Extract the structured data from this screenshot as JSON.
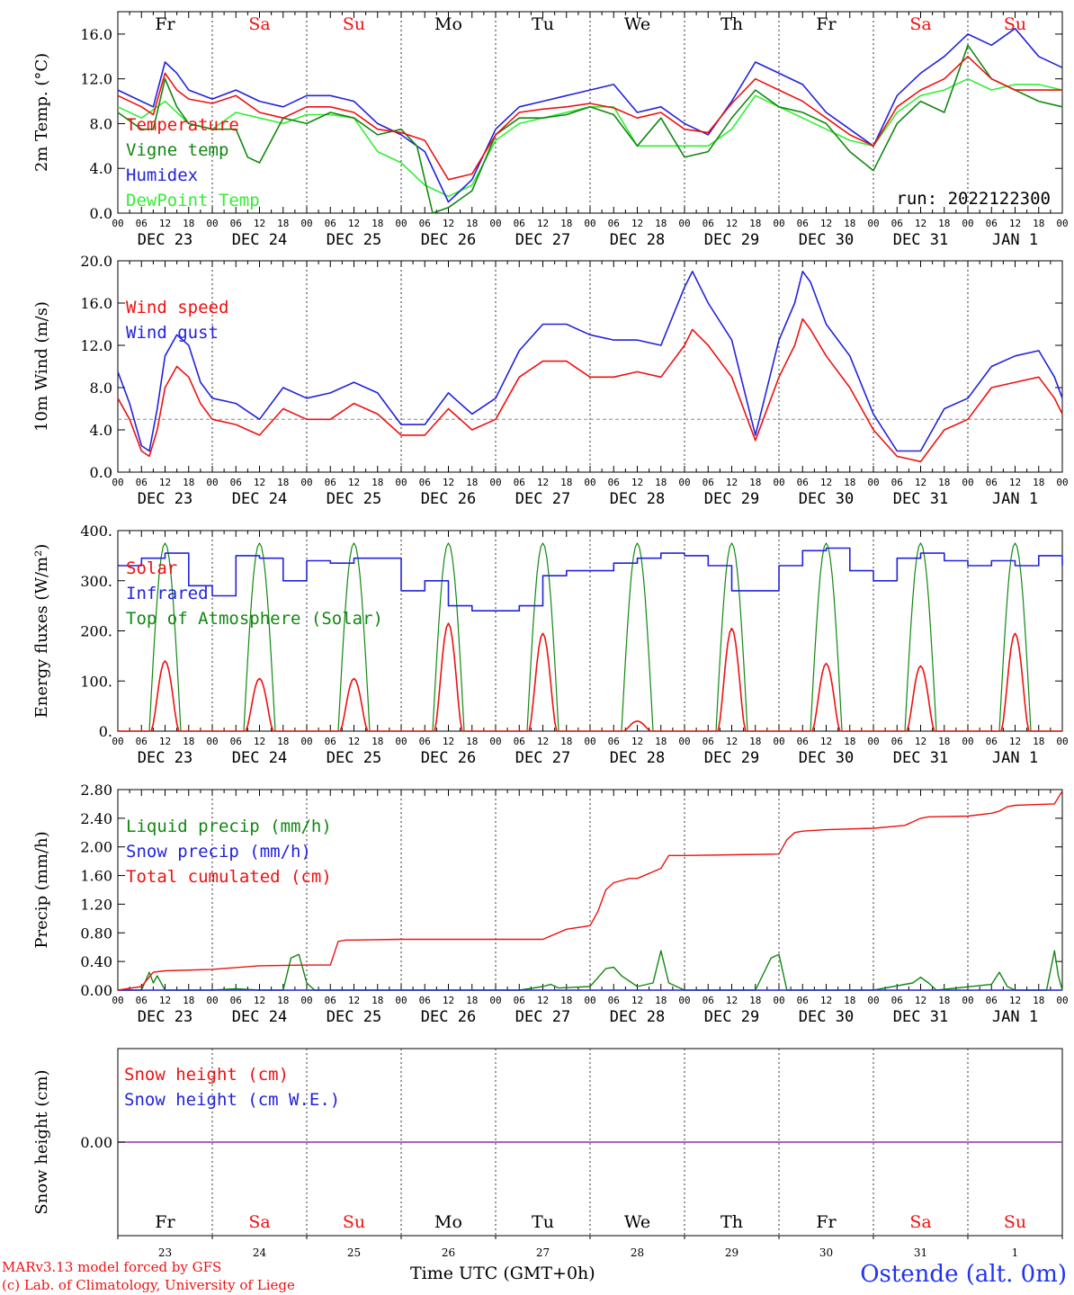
{
  "footer": {
    "credit_line1": "MARv3.13 model forced by GFS",
    "credit_line2": "(c) Lab. of Climatology, University of Liege",
    "station": "Ostende (alt. 0m)",
    "time_axis_label": "Time UTC (GMT+0h)"
  },
  "run_label": "run: 2022122300",
  "colors": {
    "red": "#ee1111",
    "green": "#118811",
    "blue": "#2222dd",
    "light_green": "#33ee33",
    "weekend": "#ee1111",
    "weekday": "#000000",
    "purple": "#8833aa"
  },
  "days": [
    {
      "abbr": "Fr",
      "date": "DEC 23",
      "num": "23",
      "weekend": false
    },
    {
      "abbr": "Sa",
      "date": "DEC 24",
      "num": "24",
      "weekend": true
    },
    {
      "abbr": "Su",
      "date": "DEC 25",
      "num": "25",
      "weekend": true
    },
    {
      "abbr": "Mo",
      "date": "DEC 26",
      "num": "26",
      "weekend": false
    },
    {
      "abbr": "Tu",
      "date": "DEC 27",
      "num": "27",
      "weekend": false
    },
    {
      "abbr": "We",
      "date": "DEC 28",
      "num": "28",
      "weekend": false
    },
    {
      "abbr": "Th",
      "date": "DEC 29",
      "num": "29",
      "weekend": false
    },
    {
      "abbr": "Fr",
      "date": "DEC 30",
      "num": "30",
      "weekend": false
    },
    {
      "abbr": "Sa",
      "date": "DEC 31",
      "num": "31",
      "weekend": true
    },
    {
      "abbr": "Su",
      "date": "JAN  1",
      "num": "1",
      "weekend": true
    }
  ],
  "hour_ticks": [
    "00",
    "06",
    "12",
    "18"
  ],
  "chart_data": [
    {
      "type": "line",
      "ylabel": "2m Temp. (°C)",
      "ylim": [
        0,
        18
      ],
      "yticks": [
        "0.0",
        "4.0",
        "8.0",
        "12.0",
        "16.0"
      ],
      "x_unit": "hours since 00 UTC DEC 23",
      "series": [
        {
          "name": "Temperature",
          "color": "red",
          "x": [
            0,
            6,
            9,
            12,
            15,
            18,
            24,
            30,
            36,
            42,
            48,
            54,
            60,
            66,
            72,
            78,
            84,
            90,
            96,
            102,
            108,
            114,
            120,
            126,
            132,
            138,
            144,
            150,
            156,
            162,
            168,
            174,
            180,
            186,
            192,
            198,
            204,
            210,
            216,
            222,
            228,
            234,
            240
          ],
          "y": [
            10.5,
            9.5,
            8.8,
            12.5,
            11,
            10.2,
            9.8,
            10.5,
            9,
            8.5,
            9.5,
            9.5,
            9,
            7.5,
            7.2,
            6.5,
            3,
            3.5,
            7,
            9,
            9.3,
            9.5,
            9.8,
            9.4,
            8.5,
            9,
            7.5,
            7.2,
            9.8,
            12,
            11,
            10,
            8.5,
            7,
            6,
            9.5,
            11,
            12,
            14,
            12,
            11,
            11,
            11
          ]
        },
        {
          "name": "Vigne temp",
          "color": "green",
          "x": [
            0,
            6,
            9,
            12,
            15,
            18,
            24,
            30,
            33,
            36,
            42,
            48,
            54,
            60,
            66,
            72,
            76,
            80,
            84,
            90,
            96,
            102,
            108,
            114,
            120,
            126,
            132,
            138,
            144,
            150,
            156,
            162,
            168,
            174,
            180,
            186,
            192,
            198,
            204,
            210,
            216,
            222,
            228,
            234,
            240
          ],
          "y": [
            9,
            7.5,
            7.5,
            12,
            9.5,
            8,
            7.5,
            7.5,
            5,
            4.5,
            8.5,
            8,
            9,
            8.5,
            7,
            7.5,
            6,
            0,
            0.5,
            2,
            7,
            8.5,
            8.5,
            8.8,
            9.5,
            8.8,
            6,
            8.5,
            5,
            5.5,
            8.5,
            11,
            9.5,
            9,
            8,
            5.5,
            3.8,
            8,
            10,
            9,
            15,
            12,
            11,
            10,
            9.5
          ]
        },
        {
          "name": "Humidex",
          "color": "blue",
          "x": [
            0,
            6,
            9,
            12,
            15,
            18,
            24,
            30,
            36,
            42,
            48,
            54,
            60,
            66,
            72,
            78,
            84,
            90,
            96,
            102,
            108,
            114,
            120,
            126,
            132,
            138,
            144,
            150,
            156,
            162,
            168,
            174,
            180,
            186,
            192,
            198,
            204,
            210,
            216,
            222,
            228,
            234,
            240
          ],
          "y": [
            11,
            10,
            9.5,
            13.5,
            12.5,
            11,
            10.2,
            11,
            10,
            9.5,
            10.5,
            10.5,
            10,
            8,
            7,
            5.5,
            1,
            3,
            7.5,
            9.5,
            10,
            10.5,
            11,
            11.5,
            9,
            9.5,
            8,
            7,
            10,
            13.5,
            12.5,
            11.5,
            9,
            7.5,
            6,
            10.5,
            12.5,
            14,
            16,
            15,
            16.5,
            14,
            13
          ]
        },
        {
          "name": "DewPoint Temp",
          "color": "light_green",
          "x": [
            0,
            6,
            12,
            18,
            24,
            30,
            36,
            42,
            48,
            54,
            60,
            66,
            72,
            78,
            84,
            90,
            96,
            102,
            108,
            114,
            120,
            126,
            132,
            138,
            144,
            150,
            156,
            162,
            168,
            174,
            180,
            186,
            192,
            198,
            204,
            210,
            216,
            222,
            228,
            234,
            240
          ],
          "y": [
            9.5,
            8.5,
            10,
            8,
            7.5,
            9,
            8.5,
            8,
            8.8,
            8.8,
            8.5,
            5.5,
            4.5,
            2.5,
            1.5,
            2.5,
            6.5,
            8,
            8.5,
            9,
            9.5,
            9.5,
            6,
            6,
            6,
            6,
            7.5,
            10.5,
            9.5,
            8.5,
            7.5,
            6.5,
            6,
            9,
            10.5,
            11,
            12,
            11,
            11.5,
            11.5,
            11
          ]
        }
      ]
    },
    {
      "type": "line",
      "ylabel": "10m Wind (m/s)",
      "ylim": [
        0,
        20
      ],
      "yticks": [
        "0.0",
        "4.0",
        "8.0",
        "12.0",
        "16.0",
        "20.0"
      ],
      "reference_line": 5,
      "series": [
        {
          "name": "Wind speed",
          "color": "red",
          "x": [
            0,
            3,
            6,
            8,
            10,
            12,
            15,
            18,
            21,
            24,
            30,
            36,
            42,
            48,
            54,
            60,
            66,
            72,
            78,
            84,
            90,
            96,
            102,
            108,
            114,
            120,
            126,
            132,
            138,
            144,
            146,
            150,
            156,
            162,
            168,
            172,
            174,
            176,
            180,
            186,
            192,
            198,
            204,
            210,
            216,
            222,
            228,
            234,
            238,
            240
          ],
          "y": [
            7,
            5,
            2,
            1.5,
            4,
            8,
            10,
            9,
            6.5,
            5,
            4.5,
            3.5,
            6,
            5,
            5,
            6.5,
            5.5,
            3.5,
            3.5,
            6,
            4,
            5,
            9,
            10.5,
            10.5,
            9,
            9,
            9.5,
            9,
            12,
            13.5,
            12,
            9,
            3,
            9,
            12,
            14.5,
            13.5,
            11,
            8,
            4,
            1.5,
            1,
            4,
            5,
            8,
            8.5,
            9,
            7,
            5.5
          ]
        },
        {
          "name": "Wind gust",
          "color": "blue",
          "x": [
            0,
            3,
            6,
            8,
            10,
            12,
            15,
            18,
            21,
            24,
            30,
            36,
            42,
            48,
            54,
            60,
            66,
            72,
            78,
            84,
            90,
            96,
            102,
            108,
            114,
            120,
            126,
            132,
            138,
            144,
            146,
            150,
            156,
            162,
            168,
            172,
            174,
            176,
            180,
            186,
            192,
            198,
            204,
            210,
            216,
            222,
            228,
            234,
            238,
            240
          ],
          "y": [
            9.5,
            6.5,
            2.5,
            2,
            6,
            11,
            13,
            12,
            8.5,
            7,
            6.5,
            5,
            8,
            7,
            7.5,
            8.5,
            7.5,
            4.5,
            4.5,
            7.5,
            5.5,
            7,
            11.5,
            14,
            14,
            13,
            12.5,
            12.5,
            12,
            17.5,
            19,
            16,
            12.5,
            3.5,
            12.5,
            16,
            19,
            18,
            14,
            11,
            5.5,
            2,
            2,
            6,
            7,
            10,
            11,
            11.5,
            9,
            7
          ]
        }
      ]
    },
    {
      "type": "line",
      "ylabel": "Energy fluxes (W/m²)",
      "ylim": [
        0,
        400
      ],
      "yticks": [
        "0.",
        "100.",
        "200.",
        "300.",
        "400."
      ],
      "series": [
        {
          "name": "Solar",
          "color": "red",
          "peaks": [
            140,
            105,
            105,
            215,
            195,
            20,
            205,
            135,
            130,
            195
          ]
        },
        {
          "name": "Infrared",
          "color": "blue",
          "x": [
            0,
            6,
            12,
            18,
            24,
            30,
            36,
            42,
            48,
            54,
            60,
            66,
            72,
            78,
            84,
            90,
            96,
            102,
            108,
            114,
            120,
            126,
            132,
            138,
            144,
            150,
            156,
            162,
            168,
            174,
            180,
            186,
            192,
            198,
            204,
            210,
            216,
            222,
            228,
            234,
            240
          ],
          "y": [
            330,
            345,
            355,
            290,
            270,
            350,
            345,
            300,
            340,
            335,
            345,
            345,
            280,
            300,
            250,
            240,
            240,
            250,
            310,
            320,
            320,
            335,
            345,
            355,
            350,
            330,
            280,
            280,
            330,
            360,
            365,
            320,
            300,
            345,
            355,
            340,
            330,
            340,
            330,
            350,
            330
          ]
        },
        {
          "name": "Top of Atmosphere (Solar)",
          "color": "green",
          "peak": 375
        }
      ]
    },
    {
      "type": "line",
      "ylabel": "Precip (mm/h)",
      "ylim": [
        0,
        2.8
      ],
      "yticks": [
        "0.00",
        "0.40",
        "0.80",
        "1.20",
        "1.60",
        "2.00",
        "2.40",
        "2.80"
      ],
      "series": [
        {
          "name": "Liquid precip (mm/h)",
          "color": "green",
          "x": [
            0,
            6,
            8,
            9,
            10,
            12,
            24,
            30,
            36,
            42,
            44,
            46,
            48,
            50,
            72,
            96,
            102,
            108,
            110,
            112,
            120,
            124,
            126,
            128,
            132,
            136,
            138,
            140,
            144,
            162,
            166,
            168,
            170,
            192,
            202,
            204,
            206,
            208,
            222,
            224,
            226,
            228,
            236,
            238,
            239,
            240
          ],
          "y": [
            0,
            0,
            0.25,
            0.1,
            0.2,
            0,
            0,
            0.02,
            0,
            0,
            0.45,
            0.5,
            0.1,
            0,
            0,
            0,
            0,
            0.05,
            0.08,
            0.03,
            0.05,
            0.3,
            0.32,
            0.2,
            0.05,
            0.1,
            0.55,
            0.1,
            0,
            0,
            0.45,
            0.5,
            0,
            0,
            0.1,
            0.18,
            0.1,
            0,
            0.08,
            0.25,
            0.05,
            0,
            0,
            0.55,
            0.2,
            0
          ]
        },
        {
          "name": "Snow precip (mm/h)",
          "color": "blue",
          "x": [
            0,
            240
          ],
          "y": [
            0,
            0
          ]
        },
        {
          "name": "Total cumulated (cm)",
          "color": "red",
          "x": [
            0,
            6,
            9,
            12,
            24,
            36,
            48,
            54,
            56,
            58,
            60,
            72,
            96,
            108,
            114,
            120,
            122,
            124,
            126,
            130,
            132,
            138,
            140,
            144,
            156,
            168,
            170,
            172,
            174,
            180,
            192,
            200,
            204,
            206,
            216,
            222,
            224,
            226,
            228,
            238,
            240
          ],
          "y": [
            0,
            0.05,
            0.25,
            0.27,
            0.29,
            0.34,
            0.35,
            0.35,
            0.68,
            0.7,
            0.7,
            0.71,
            0.71,
            0.71,
            0.85,
            0.9,
            1.1,
            1.4,
            1.5,
            1.56,
            1.56,
            1.7,
            1.88,
            1.88,
            1.89,
            1.9,
            2.1,
            2.2,
            2.22,
            2.24,
            2.26,
            2.3,
            2.4,
            2.42,
            2.43,
            2.47,
            2.5,
            2.56,
            2.58,
            2.6,
            2.78
          ]
        }
      ]
    },
    {
      "type": "line",
      "ylabel": "Snow height (cm)",
      "yticks": [
        "0.00"
      ],
      "series": [
        {
          "name": "Snow height (cm)",
          "color": "red",
          "x": [
            0,
            240
          ],
          "y": [
            0,
            0
          ]
        },
        {
          "name": "Snow height (cm W.E.)",
          "color": "blue",
          "x": [
            0,
            240
          ],
          "y": [
            0,
            0
          ]
        }
      ]
    }
  ]
}
